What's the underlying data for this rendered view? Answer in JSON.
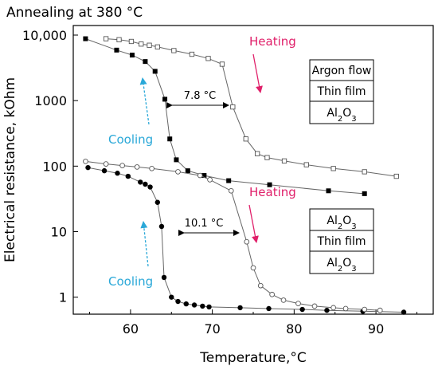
{
  "chart_data": {
    "type": "line",
    "title": "Annealing at 380 °C",
    "xlabel": "Temperature,°C",
    "ylabel": "Electrical resistance, kOhm",
    "xlim": [
      53,
      97
    ],
    "ylim": [
      0.55,
      14000
    ],
    "yscale": "log",
    "x_ticks": [
      60,
      70,
      80,
      90
    ],
    "y_ticks": [
      1,
      10,
      100,
      1000,
      10000
    ],
    "y_tick_labels": [
      "1",
      "10",
      "100",
      "1000",
      "10,000"
    ],
    "grid": false,
    "annotations": {
      "upper_delta": "7.8 °C",
      "lower_delta": "10.1 °C",
      "heating": "Heating",
      "cooling": "Cooling"
    },
    "stack_upper": [
      "Argon flow",
      "Thin film",
      "Al2O3"
    ],
    "stack_lower": [
      "Al2O3",
      "Thin film",
      "Al2O3"
    ],
    "series": [
      {
        "style": "filled-square",
        "x": [
          54.5,
          58.3,
          60.2,
          61.8,
          63.0,
          64.2,
          64.8,
          65.6,
          67.0,
          69.0,
          72.0,
          77.0,
          84.2,
          88.6
        ],
        "y": [
          8800,
          5900,
          4950,
          3950,
          2800,
          1050,
          260,
          125,
          85,
          72,
          60,
          52,
          42,
          38
        ]
      },
      {
        "style": "open-square",
        "x": [
          57.0,
          58.6,
          60.1,
          61.3,
          62.3,
          63.3,
          65.3,
          67.5,
          69.5,
          71.2,
          72.5,
          74.1,
          75.5,
          76.7,
          78.8,
          81.5,
          84.8,
          88.6,
          92.5
        ],
        "y": [
          8800,
          8500,
          8000,
          7300,
          7000,
          6600,
          5800,
          5100,
          4400,
          3600,
          800,
          260,
          155,
          135,
          120,
          105,
          92,
          82,
          70
        ]
      },
      {
        "style": "filled-circle",
        "x": [
          54.8,
          56.8,
          58.4,
          59.7,
          61.2,
          61.8,
          62.4,
          63.3,
          63.8,
          64.1,
          65.0,
          65.8,
          66.8,
          67.8,
          68.8,
          69.6,
          73.4,
          76.9,
          81.0,
          84.0,
          88.4,
          93.4
        ],
        "y": [
          95,
          85,
          78,
          70,
          57,
          53,
          48,
          28,
          12,
          2,
          1.0,
          0.86,
          0.79,
          0.76,
          0.73,
          0.71,
          0.69,
          0.67,
          0.65,
          0.63,
          0.61,
          0.59
        ]
      },
      {
        "style": "open-circle",
        "x": [
          54.5,
          57.0,
          59.0,
          60.8,
          62.6,
          65.8,
          68.5,
          69.7,
          72.3,
          74.2,
          75.0,
          75.9,
          77.3,
          78.7,
          80.5,
          82.5,
          84.8,
          86.3,
          88.6,
          90.5
        ],
        "y": [
          118,
          108,
          102,
          97,
          92,
          82,
          72,
          62,
          42,
          7,
          2.8,
          1.5,
          1.1,
          0.9,
          0.8,
          0.73,
          0.69,
          0.67,
          0.65,
          0.63
        ]
      }
    ]
  }
}
